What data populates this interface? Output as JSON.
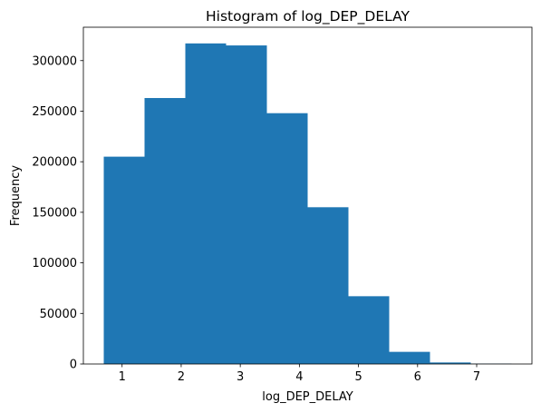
{
  "chart_data": {
    "type": "bar",
    "title": "Histogram of log_DEP_DELAY",
    "xlabel": "log_DEP_DELAY",
    "ylabel": "Frequency",
    "bin_edges": [
      0.69,
      1.38,
      2.07,
      2.76,
      3.45,
      4.14,
      4.83,
      5.52,
      6.21,
      6.9,
      7.59
    ],
    "values": [
      205000,
      263000,
      317000,
      315000,
      248000,
      155000,
      67000,
      12000,
      1500,
      300
    ],
    "xlim": [
      0.345,
      7.935
    ],
    "ylim": [
      0,
      333000
    ],
    "xticks": [
      1,
      2,
      3,
      4,
      5,
      6,
      7
    ],
    "yticks": [
      0,
      50000,
      100000,
      150000,
      200000,
      250000,
      300000
    ],
    "grid": false,
    "bar_color": "#1f77b4"
  }
}
